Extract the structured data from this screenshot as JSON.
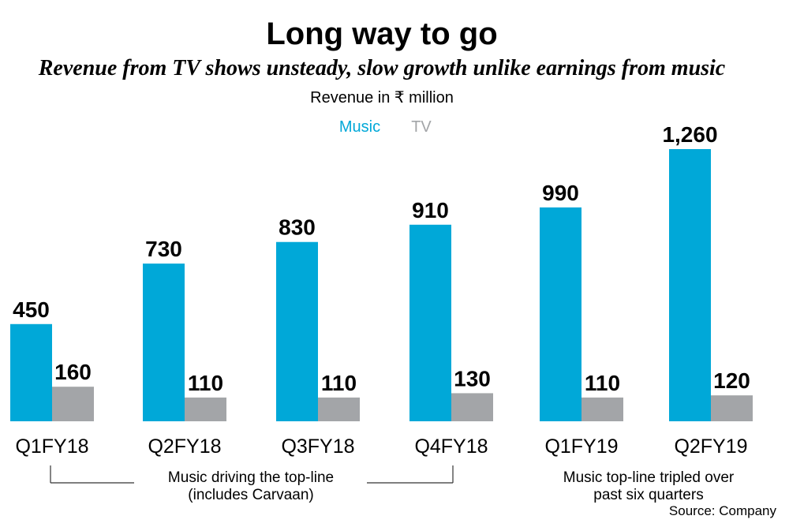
{
  "chart_data": {
    "type": "bar",
    "title": "Long way to go",
    "subtitle": "Revenue from TV shows unsteady, slow growth unlike earnings from music",
    "units_label": "Revenue in ₹ million",
    "categories": [
      "Q1FY18",
      "Q2FY18",
      "Q3FY18",
      "Q4FY18",
      "Q1FY19",
      "Q2FY19"
    ],
    "series": [
      {
        "name": "Music",
        "color": "#00a8d8",
        "values": [
          450,
          730,
          830,
          910,
          990,
          1260
        ],
        "labels": [
          "450",
          "730",
          "830",
          "910",
          "990",
          "1,260"
        ]
      },
      {
        "name": "TV",
        "color": "#a3a5a8",
        "values": [
          160,
          110,
          110,
          130,
          110,
          120
        ],
        "labels": [
          "160",
          "110",
          "110",
          "130",
          "110",
          "120"
        ]
      }
    ],
    "annotations": {
      "bracket_note_line1": "Music driving the top-line",
      "bracket_note_line2": "(includes Carvaan)",
      "right_note_line1": "Music top-line tripled over",
      "right_note_line2": "past six quarters"
    },
    "source": "Source: Company",
    "ylim": [
      0,
      1260
    ],
    "grid": false,
    "legend_position": "top-center"
  }
}
